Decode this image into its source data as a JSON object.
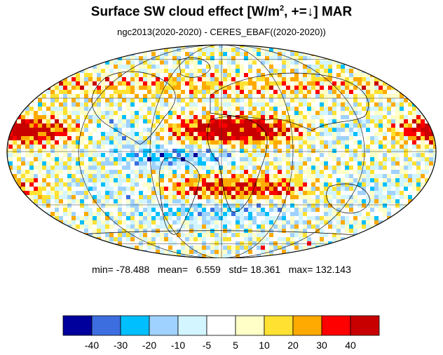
{
  "title": {
    "main": "Surface SW cloud effect [W/m",
    "sup": "2",
    "rest": ", +=↓]  MAR"
  },
  "subtitle": "ngc2013(2020-2020) - CERES_EBAF((2020-2020))",
  "stats": {
    "min_label": "min=",
    "min": "-78.488",
    "mean_label": "mean=",
    "mean": "6.559",
    "std_label": "std=",
    "std": "18.361",
    "max_label": "max=",
    "max": "132.143"
  },
  "colorbar": {
    "colors": [
      "#00009c",
      "#3d6ee0",
      "#00bfff",
      "#a0d2ff",
      "#d2f5ff",
      "#ffffff",
      "#ffffc8",
      "#ffe132",
      "#ffaa00",
      "#ff0000",
      "#c80000"
    ],
    "labels": [
      "-40",
      "-30",
      "-20",
      "-10",
      "-5",
      "5",
      "10",
      "20",
      "30",
      "40"
    ]
  },
  "map": {
    "projection": "mollweide",
    "gridlines": true,
    "coastlines": true
  }
}
